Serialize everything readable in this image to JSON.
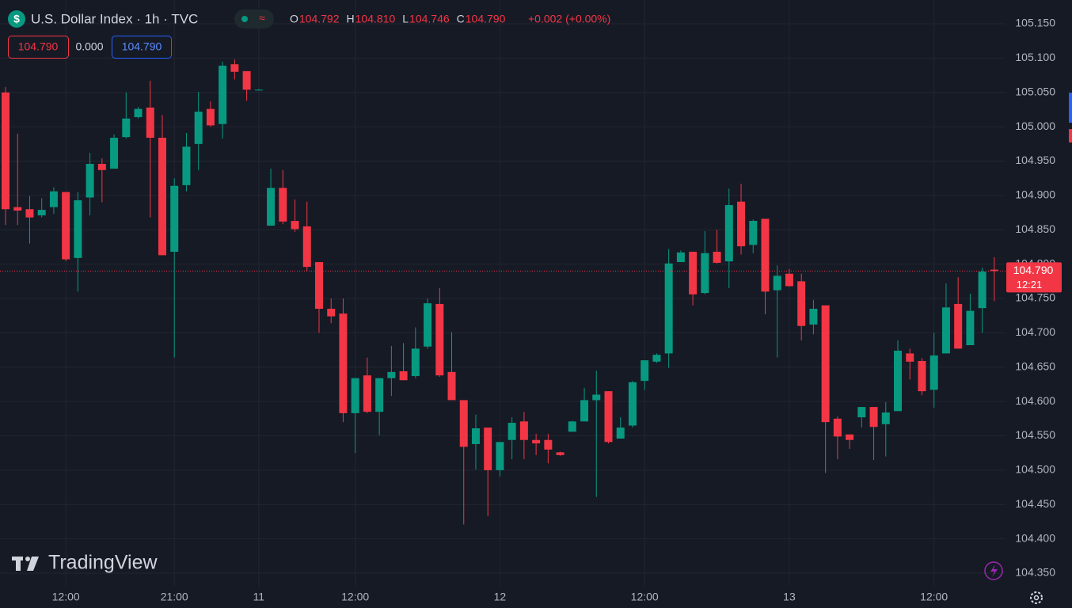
{
  "header": {
    "title": "U.S. Dollar Index · 1h · TVC",
    "ohlc": [
      {
        "key": "O",
        "value": "104.792"
      },
      {
        "key": "H",
        "value": "104.810"
      },
      {
        "key": "L",
        "value": "104.746"
      },
      {
        "key": "C",
        "value": "104.790"
      }
    ],
    "change": "+0.002 (+0.00%)",
    "bid": "104.790",
    "spread": "0.000",
    "ask": "104.790"
  },
  "watermark": "TradingView",
  "chart_data": {
    "type": "candlestick",
    "up_color": "#089981",
    "down_color": "#f23645",
    "grid": true,
    "categories": [
      null,
      null,
      null,
      null,
      null,
      "12:00",
      null,
      null,
      null,
      null,
      null,
      null,
      null,
      null,
      "21:00",
      null,
      null,
      null,
      null,
      null,
      null,
      "11",
      null,
      null,
      null,
      null,
      null,
      null,
      null,
      "12:00",
      null,
      null,
      null,
      null,
      null,
      null,
      null,
      null,
      null,
      null,
      null,
      "12",
      null,
      null,
      null,
      null,
      null,
      null,
      null,
      null,
      null,
      null,
      null,
      "12:00",
      null,
      null,
      null,
      null,
      null,
      null,
      null,
      null,
      null,
      null,
      null,
      "13",
      null,
      null,
      null,
      null,
      null,
      null,
      null,
      null,
      null,
      null,
      null,
      "12:00",
      null,
      null,
      null,
      null,
      null
    ],
    "open": [
      105.05,
      104.883,
      104.88,
      104.871,
      104.883,
      104.905,
      104.809,
      104.897,
      104.946,
      104.939,
      104.985,
      105.014,
      105.028,
      104.984,
      104.818,
      104.915,
      104.975,
      105.026,
      105.004,
      105.091,
      105.081,
      105.054,
      104.856,
      104.911,
      104.863,
      104.855,
      104.803,
      104.735,
      104.728,
      104.583,
      104.638,
      104.585,
      104.634,
      104.644,
      104.637,
      104.68,
      104.742,
      104.643,
      104.602,
      104.538,
      104.562,
      104.5,
      104.544,
      104.571,
      104.544,
      104.544,
      104.526,
      104.556,
      104.571,
      104.602,
      104.615,
      104.546,
      104.565,
      104.63,
      104.658,
      104.67,
      104.803,
      104.818,
      104.758,
      104.818,
      104.804,
      104.891,
      104.828,
      104.866,
      104.762,
      104.786,
      104.775,
      104.712,
      104.74,
      104.575,
      104.552,
      104.577,
      104.592,
      104.567,
      104.586,
      104.67,
      104.659,
      104.617,
      104.67,
      104.742,
      104.682,
      104.736,
      104.792
    ],
    "high": [
      105.058,
      104.99,
      104.899,
      104.896,
      104.912,
      104.905,
      104.905,
      104.962,
      104.954,
      104.989,
      105.05,
      105.029,
      105.067,
      105.017,
      104.925,
      104.991,
      105.051,
      105.037,
      105.095,
      105.098,
      105.081,
      105.055,
      104.939,
      104.937,
      104.894,
      104.891,
      104.803,
      104.75,
      104.75,
      104.634,
      104.664,
      104.634,
      104.681,
      104.685,
      104.708,
      104.75,
      104.765,
      104.701,
      104.602,
      104.581,
      104.562,
      104.541,
      104.577,
      104.585,
      104.553,
      104.553,
      104.527,
      104.572,
      104.62,
      104.645,
      104.615,
      104.577,
      104.63,
      104.66,
      104.67,
      104.822,
      104.82,
      104.818,
      104.848,
      104.85,
      104.91,
      104.917,
      104.865,
      104.866,
      104.798,
      104.793,
      104.786,
      104.748,
      104.74,
      104.578,
      104.552,
      104.592,
      104.592,
      104.599,
      104.689,
      104.677,
      104.663,
      104.7,
      104.772,
      104.781,
      104.757,
      104.795,
      104.81
    ],
    "low": [
      104.857,
      104.857,
      104.83,
      104.868,
      104.873,
      104.804,
      104.76,
      104.871,
      104.89,
      104.939,
      104.983,
      105.012,
      104.868,
      104.813,
      104.664,
      104.906,
      104.937,
      105.0,
      104.983,
      105.069,
      105.038,
      105.053,
      104.856,
      104.858,
      104.847,
      104.79,
      104.7,
      104.714,
      104.57,
      104.525,
      104.583,
      104.551,
      104.608,
      104.631,
      104.634,
      104.677,
      104.636,
      104.602,
      104.421,
      104.501,
      104.433,
      104.491,
      104.516,
      104.516,
      104.522,
      104.51,
      104.521,
      104.556,
      104.571,
      104.461,
      104.539,
      104.546,
      104.562,
      104.617,
      104.656,
      104.649,
      104.803,
      104.74,
      104.756,
      104.801,
      104.765,
      104.814,
      104.816,
      104.727,
      104.664,
      104.767,
      104.689,
      104.698,
      104.496,
      104.516,
      104.531,
      104.562,
      104.515,
      104.52,
      104.586,
      104.632,
      104.609,
      104.591,
      104.67,
      104.677,
      104.682,
      104.7,
      104.746
    ],
    "close": [
      104.88,
      104.878,
      104.868,
      104.879,
      104.906,
      104.807,
      104.893,
      104.946,
      104.937,
      104.984,
      105.012,
      105.026,
      104.984,
      104.813,
      104.914,
      104.971,
      105.022,
      105.002,
      105.089,
      105.08,
      105.054,
      105.054,
      104.911,
      104.862,
      104.851,
      104.796,
      104.735,
      104.724,
      104.583,
      104.634,
      104.585,
      104.634,
      104.643,
      104.631,
      104.677,
      104.743,
      104.638,
      104.602,
      104.534,
      104.561,
      104.5,
      104.541,
      104.569,
      104.544,
      104.539,
      104.53,
      104.522,
      104.571,
      104.602,
      104.61,
      104.541,
      104.562,
      104.628,
      104.66,
      104.668,
      104.801,
      104.817,
      104.756,
      104.816,
      104.802,
      104.886,
      104.826,
      104.863,
      104.76,
      104.783,
      104.768,
      104.71,
      104.735,
      104.57,
      104.549,
      104.544,
      104.592,
      104.563,
      104.584,
      104.674,
      104.658,
      104.615,
      104.667,
      104.737,
      104.677,
      104.732,
      104.789,
      104.79
    ],
    "ylim": [
      104.3316,
      105.1846
    ],
    "yticks": [
      {
        "value": 104.35,
        "label": "104.350"
      },
      {
        "value": 104.4,
        "label": "104.400"
      },
      {
        "value": 104.45,
        "label": "104.450"
      },
      {
        "value": 104.5,
        "label": "104.500"
      },
      {
        "value": 104.55,
        "label": "104.550"
      },
      {
        "value": 104.6,
        "label": "104.600"
      },
      {
        "value": 104.65,
        "label": "104.650"
      },
      {
        "value": 104.7,
        "label": "104.700"
      },
      {
        "value": 104.75,
        "label": "104.750"
      },
      {
        "value": 104.8,
        "label": "104.800"
      },
      {
        "value": 104.85,
        "label": "104.850"
      },
      {
        "value": 104.9,
        "label": "104.900"
      },
      {
        "value": 104.95,
        "label": "104.950"
      },
      {
        "value": 105.0,
        "label": "105.000"
      },
      {
        "value": 105.05,
        "label": "105.050"
      },
      {
        "value": 105.1,
        "label": "105.100"
      },
      {
        "value": 105.15,
        "label": "105.150"
      }
    ],
    "last_price": {
      "value": 104.79,
      "label": "104.790"
    },
    "countdown": "12:21"
  }
}
